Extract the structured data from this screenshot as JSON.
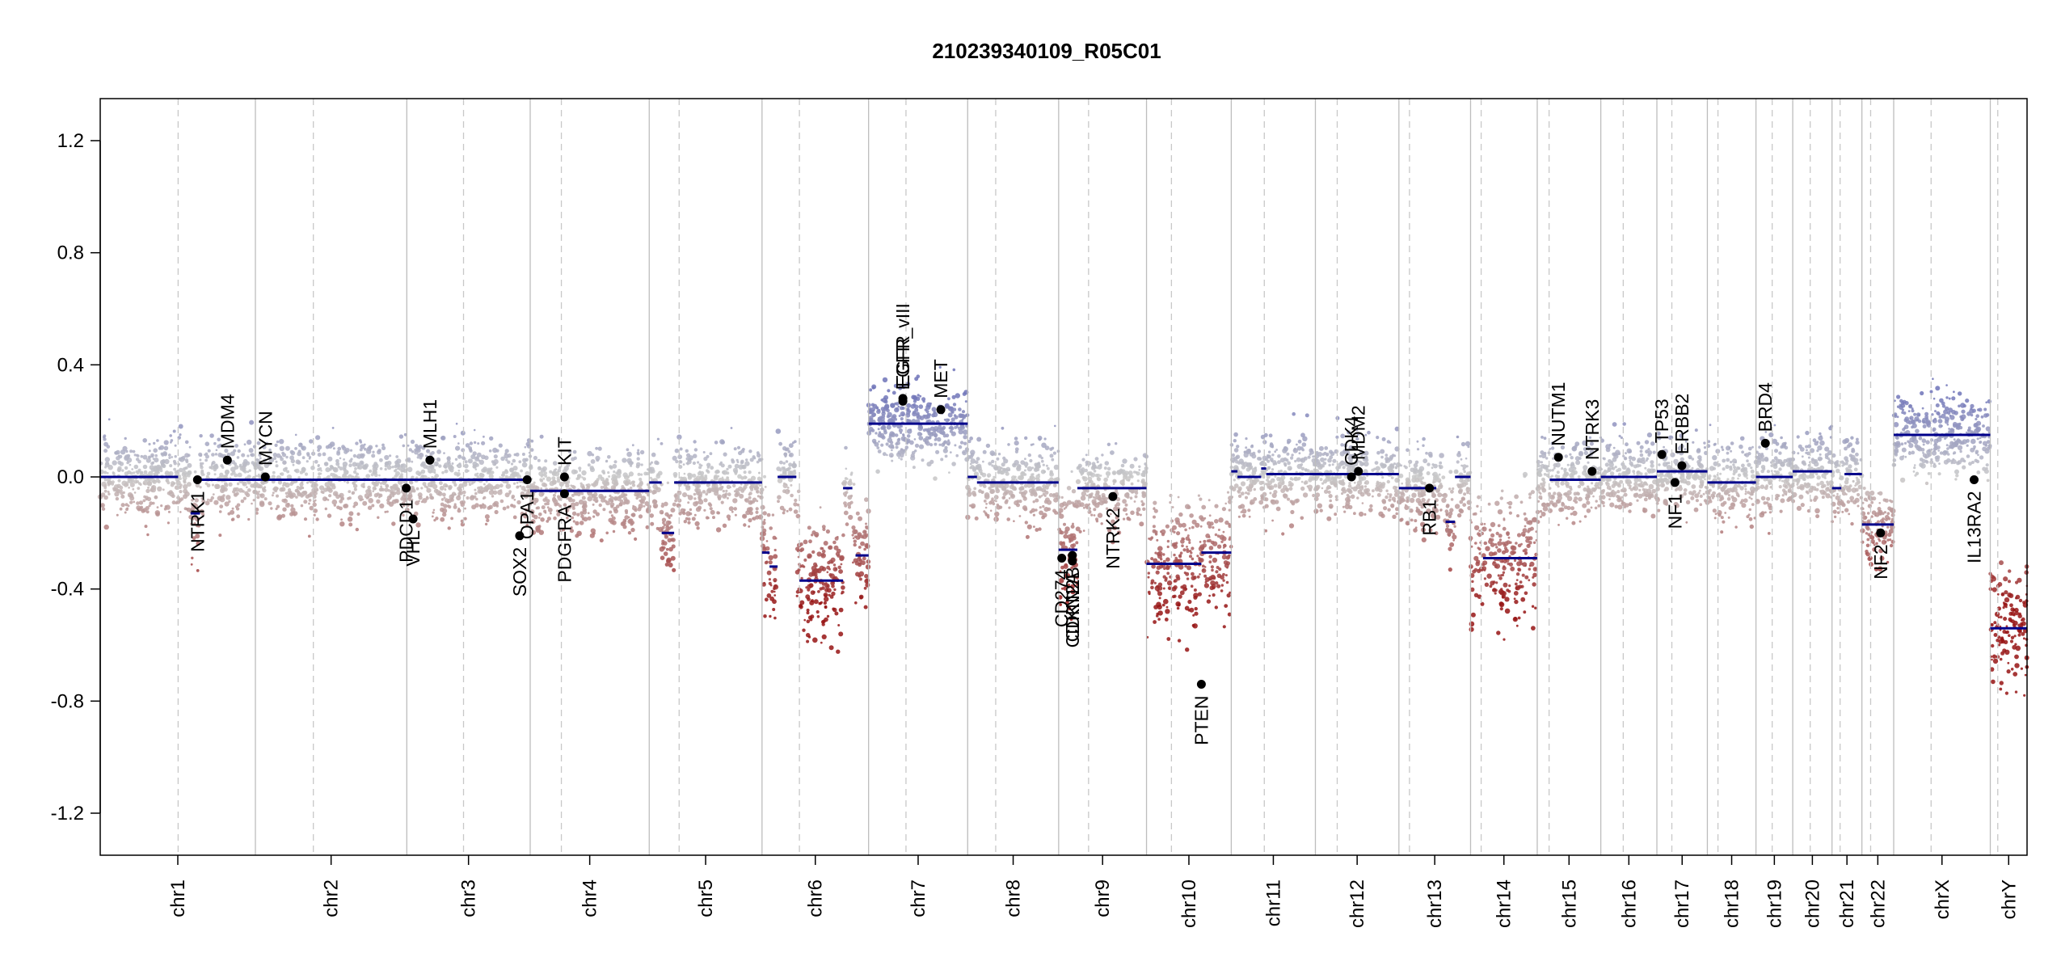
{
  "chart_data": {
    "type": "scatter",
    "title": "210239340109_R05C01",
    "xlabel": "",
    "ylabel": "",
    "ylim": [
      -1.35,
      1.35
    ],
    "y_ticks": [
      -1.2,
      -0.8,
      -0.4,
      0.0,
      0.4,
      0.8,
      1.2
    ],
    "y_tick_labels": [
      "-1.2",
      "-0.8",
      "-0.4",
      "0.0",
      "0.4",
      "0.8",
      "1.2"
    ],
    "grid": false,
    "legend": "none",
    "colors": {
      "gain": "#7b7fbf",
      "neutral": "#c8c8c8",
      "loss": "#a52a2a",
      "segment": "#00008b",
      "gene_point": "#000000",
      "chrom_border": "#bbbbbb"
    },
    "chromosomes": [
      {
        "label": "chr1",
        "length": 249,
        "centromere": 125,
        "segments": [
          {
            "s": 0,
            "e": 125,
            "v": 0.0
          },
          {
            "s": 145,
            "e": 160,
            "v": -0.13
          },
          {
            "s": 160,
            "e": 249,
            "v": -0.01
          }
        ],
        "level_lo": [
          {
            "s": 0,
            "e": 249,
            "v": 0.0
          }
        ]
      },
      {
        "label": "chr2",
        "length": 243,
        "centromere": 93,
        "segments": [
          {
            "s": 0,
            "e": 243,
            "v": -0.01
          }
        ]
      },
      {
        "label": "chr3",
        "length": 198,
        "centromere": 91,
        "segments": [
          {
            "s": 0,
            "e": 198,
            "v": -0.01
          }
        ]
      },
      {
        "label": "chr4",
        "length": 191,
        "centromere": 50,
        "segments": [
          {
            "s": 0,
            "e": 50,
            "v": -0.05
          },
          {
            "s": 50,
            "e": 191,
            "v": -0.05
          }
        ]
      },
      {
        "label": "chr5",
        "length": 181,
        "centromere": 48,
        "segments": [
          {
            "s": 0,
            "e": 20,
            "v": -0.02
          },
          {
            "s": 20,
            "e": 40,
            "v": -0.2
          },
          {
            "s": 40,
            "e": 181,
            "v": -0.02
          }
        ]
      },
      {
        "label": "chr6",
        "length": 171,
        "centromere": 60,
        "segments": [
          {
            "s": 0,
            "e": 12,
            "v": -0.27
          },
          {
            "s": 12,
            "e": 25,
            "v": -0.32
          },
          {
            "s": 25,
            "e": 55,
            "v": 0.0
          },
          {
            "s": 60,
            "e": 130,
            "v": -0.37
          },
          {
            "s": 130,
            "e": 145,
            "v": -0.04
          },
          {
            "s": 150,
            "e": 171,
            "v": -0.28
          }
        ]
      },
      {
        "label": "chr7",
        "length": 159,
        "centromere": 60,
        "segments": [
          {
            "s": 0,
            "e": 159,
            "v": 0.19
          }
        ]
      },
      {
        "label": "chr8",
        "length": 146,
        "centromere": 45,
        "segments": [
          {
            "s": 0,
            "e": 15,
            "v": 0.0
          },
          {
            "s": 15,
            "e": 146,
            "v": -0.02
          }
        ]
      },
      {
        "label": "chr9",
        "length": 141,
        "centromere": 48,
        "segments": [
          {
            "s": 0,
            "e": 30,
            "v": -0.26
          },
          {
            "s": 30,
            "e": 60,
            "v": -0.04
          },
          {
            "s": 60,
            "e": 141,
            "v": -0.04
          }
        ]
      },
      {
        "label": "chr10",
        "length": 136,
        "centromere": 40,
        "segments": [
          {
            "s": 0,
            "e": 88,
            "v": -0.31
          },
          {
            "s": 88,
            "e": 136,
            "v": -0.27
          }
        ]
      },
      {
        "label": "chr11",
        "length": 135,
        "centromere": 53,
        "segments": [
          {
            "s": 0,
            "e": 10,
            "v": 0.02
          },
          {
            "s": 10,
            "e": 48,
            "v": 0.0
          },
          {
            "s": 48,
            "e": 56,
            "v": 0.03
          },
          {
            "s": 56,
            "e": 135,
            "v": 0.01
          }
        ]
      },
      {
        "label": "chr12",
        "length": 134,
        "centromere": 35,
        "segments": [
          {
            "s": 0,
            "e": 134,
            "v": 0.01
          }
        ]
      },
      {
        "label": "chr13",
        "length": 115,
        "centromere": 17,
        "segments": [
          {
            "s": 0,
            "e": 60,
            "v": -0.04
          },
          {
            "s": 75,
            "e": 90,
            "v": -0.16
          },
          {
            "s": 90,
            "e": 115,
            "v": 0.0
          }
        ]
      },
      {
        "label": "chr14",
        "length": 107,
        "centromere": 17,
        "segments": [
          {
            "s": 20,
            "e": 107,
            "v": -0.29
          }
        ]
      },
      {
        "label": "chr15",
        "length": 102,
        "centromere": 19,
        "segments": [
          {
            "s": 20,
            "e": 102,
            "v": -0.01
          }
        ]
      },
      {
        "label": "chr16",
        "length": 90,
        "centromere": 36,
        "segments": [
          {
            "s": 0,
            "e": 90,
            "v": 0.0
          }
        ]
      },
      {
        "label": "chr17",
        "length": 81,
        "centromere": 24,
        "segments": [
          {
            "s": 0,
            "e": 81,
            "v": 0.02
          }
        ]
      },
      {
        "label": "chr18",
        "length": 78,
        "centromere": 17,
        "segments": [
          {
            "s": 0,
            "e": 78,
            "v": -0.02
          }
        ]
      },
      {
        "label": "chr19",
        "length": 59,
        "centromere": 26,
        "segments": [
          {
            "s": 0,
            "e": 59,
            "v": 0.0
          }
        ]
      },
      {
        "label": "chr20",
        "length": 63,
        "centromere": 28,
        "segments": [
          {
            "s": 0,
            "e": 63,
            "v": 0.02
          }
        ]
      },
      {
        "label": "chr21",
        "length": 48,
        "centromere": 13,
        "segments": [
          {
            "s": 0,
            "e": 15,
            "v": -0.04
          },
          {
            "s": 20,
            "e": 48,
            "v": 0.01
          }
        ]
      },
      {
        "label": "chr22",
        "length": 51,
        "centromere": 14,
        "segments": [
          {
            "s": 0,
            "e": 51,
            "v": -0.17
          }
        ]
      },
      {
        "label": "chrX",
        "length": 155,
        "centromere": 60,
        "segments": [
          {
            "s": 0,
            "e": 155,
            "v": 0.15
          }
        ]
      },
      {
        "label": "chrY",
        "length": 59,
        "centromere": 12,
        "segments": [
          {
            "s": 0,
            "e": 59,
            "v": -0.54
          }
        ]
      }
    ],
    "genes": [
      {
        "name": "NTRK1",
        "chr": "chr1",
        "pos": 156,
        "v": -0.01
      },
      {
        "name": "MDM4",
        "chr": "chr1",
        "pos": 204,
        "v": 0.06
      },
      {
        "name": "MYCN",
        "chr": "chr2",
        "pos": 16,
        "v": 0.0
      },
      {
        "name": "PDCD1",
        "chr": "chr2",
        "pos": 242,
        "v": -0.04
      },
      {
        "name": "VHL",
        "chr": "chr3",
        "pos": 10,
        "v": -0.15
      },
      {
        "name": "MLH1",
        "chr": "chr3",
        "pos": 37,
        "v": 0.06
      },
      {
        "name": "SOX2",
        "chr": "chr3",
        "pos": 181,
        "v": -0.21
      },
      {
        "name": "OPA1",
        "chr": "chr3",
        "pos": 193,
        "v": -0.01
      },
      {
        "name": "PDGFRA",
        "chr": "chr4",
        "pos": 55,
        "v": -0.06
      },
      {
        "name": "KIT",
        "chr": "chr4",
        "pos": 55,
        "v": 0.0
      },
      {
        "name": "EGFR",
        "chr": "chr7",
        "pos": 55,
        "v": 0.28
      },
      {
        "name": "EGFR_vIII",
        "chr": "chr7",
        "pos": 55,
        "v": 0.27
      },
      {
        "name": "MET",
        "chr": "chr7",
        "pos": 116,
        "v": 0.24
      },
      {
        "name": "CD274",
        "chr": "chr9",
        "pos": 5,
        "v": -0.29
      },
      {
        "name": "CDKN2A",
        "chr": "chr9",
        "pos": 22,
        "v": -0.3
      },
      {
        "name": "CDKN2B",
        "chr": "chr9",
        "pos": 22,
        "v": -0.28
      },
      {
        "name": "NTRK2",
        "chr": "chr9",
        "pos": 87,
        "v": -0.07
      },
      {
        "name": "PTEN",
        "chr": "chr10",
        "pos": 88,
        "v": -0.74
      },
      {
        "name": "CDK4",
        "chr": "chr12",
        "pos": 58,
        "v": 0.0
      },
      {
        "name": "MDM2",
        "chr": "chr12",
        "pos": 69,
        "v": 0.02
      },
      {
        "name": "RB1",
        "chr": "chr13",
        "pos": 49,
        "v": -0.04
      },
      {
        "name": "NUTM1",
        "chr": "chr15",
        "pos": 34,
        "v": 0.07
      },
      {
        "name": "NTRK3",
        "chr": "chr15",
        "pos": 88,
        "v": 0.02
      },
      {
        "name": "TP53",
        "chr": "chr17",
        "pos": 8,
        "v": 0.08
      },
      {
        "name": "NF1",
        "chr": "chr17",
        "pos": 29,
        "v": -0.02
      },
      {
        "name": "ERBB2",
        "chr": "chr17",
        "pos": 40,
        "v": 0.04
      },
      {
        "name": "BRD4",
        "chr": "chr19",
        "pos": 15,
        "v": 0.12
      },
      {
        "name": "NF2",
        "chr": "chr22",
        "pos": 30,
        "v": -0.2
      },
      {
        "name": "IL13RA2",
        "chr": "chrX",
        "pos": 129,
        "v": -0.01
      }
    ]
  }
}
